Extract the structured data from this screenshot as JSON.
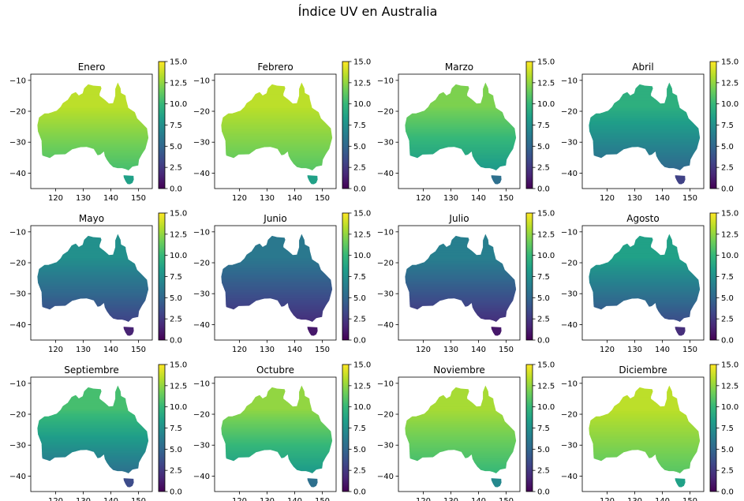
{
  "suptitle": "Índice UV en Australia",
  "colors": {
    "viridis_stops": [
      "#440154",
      "#482878",
      "#3e4989",
      "#31688e",
      "#26828e",
      "#1f9e89",
      "#35b779",
      "#6ece58",
      "#b5de2b",
      "#fde725"
    ],
    "land_mask": "#ffffff"
  },
  "chart_data": {
    "type": "heatmap",
    "panel_type": "heatmap",
    "layout": "3 rows x 4 columns of small-multiple maps, each with its own colorbar at right",
    "x_ticks": [
      120,
      130,
      140,
      150
    ],
    "y_ticks": [
      -10,
      -20,
      -30,
      -40
    ],
    "xlim": [
      111,
      155
    ],
    "ylim": [
      -45,
      -8
    ],
    "colorbar": {
      "colormap": "viridis",
      "min": 0.0,
      "max": 15.0,
      "ticks": [
        "0.0",
        "2.5",
        "5.0",
        "7.5",
        "10.0",
        "12.5",
        "15.0"
      ]
    },
    "panels": [
      {
        "title": "Enero",
        "uv_north": 13.5,
        "uv_south": 10.5,
        "uv_tasmania": 8.5
      },
      {
        "title": "Febrero",
        "uv_north": 13.5,
        "uv_south": 11.0,
        "uv_tasmania": 8.5
      },
      {
        "title": "Marzo",
        "uv_north": 12.0,
        "uv_south": 8.0,
        "uv_tasmania": 5.5
      },
      {
        "title": "Abril",
        "uv_north": 9.5,
        "uv_south": 5.0,
        "uv_tasmania": 3.0
      },
      {
        "title": "Mayo",
        "uv_north": 7.5,
        "uv_south": 3.0,
        "uv_tasmania": 1.5
      },
      {
        "title": "Junio",
        "uv_north": 6.0,
        "uv_south": 2.0,
        "uv_tasmania": 1.0
      },
      {
        "title": "Julio",
        "uv_north": 6.5,
        "uv_south": 2.0,
        "uv_tasmania": 1.0
      },
      {
        "title": "Agosto",
        "uv_north": 8.5,
        "uv_south": 3.5,
        "uv_tasmania": 2.0
      },
      {
        "title": "Septiembre",
        "uv_north": 10.5,
        "uv_south": 5.5,
        "uv_tasmania": 3.5
      },
      {
        "title": "Octubre",
        "uv_north": 12.5,
        "uv_south": 8.0,
        "uv_tasmania": 5.5
      },
      {
        "title": "Noviembre",
        "uv_north": 13.0,
        "uv_south": 10.0,
        "uv_tasmania": 7.0
      },
      {
        "title": "Diciembre",
        "uv_north": 13.5,
        "uv_south": 11.0,
        "uv_tasmania": 8.5
      }
    ]
  }
}
